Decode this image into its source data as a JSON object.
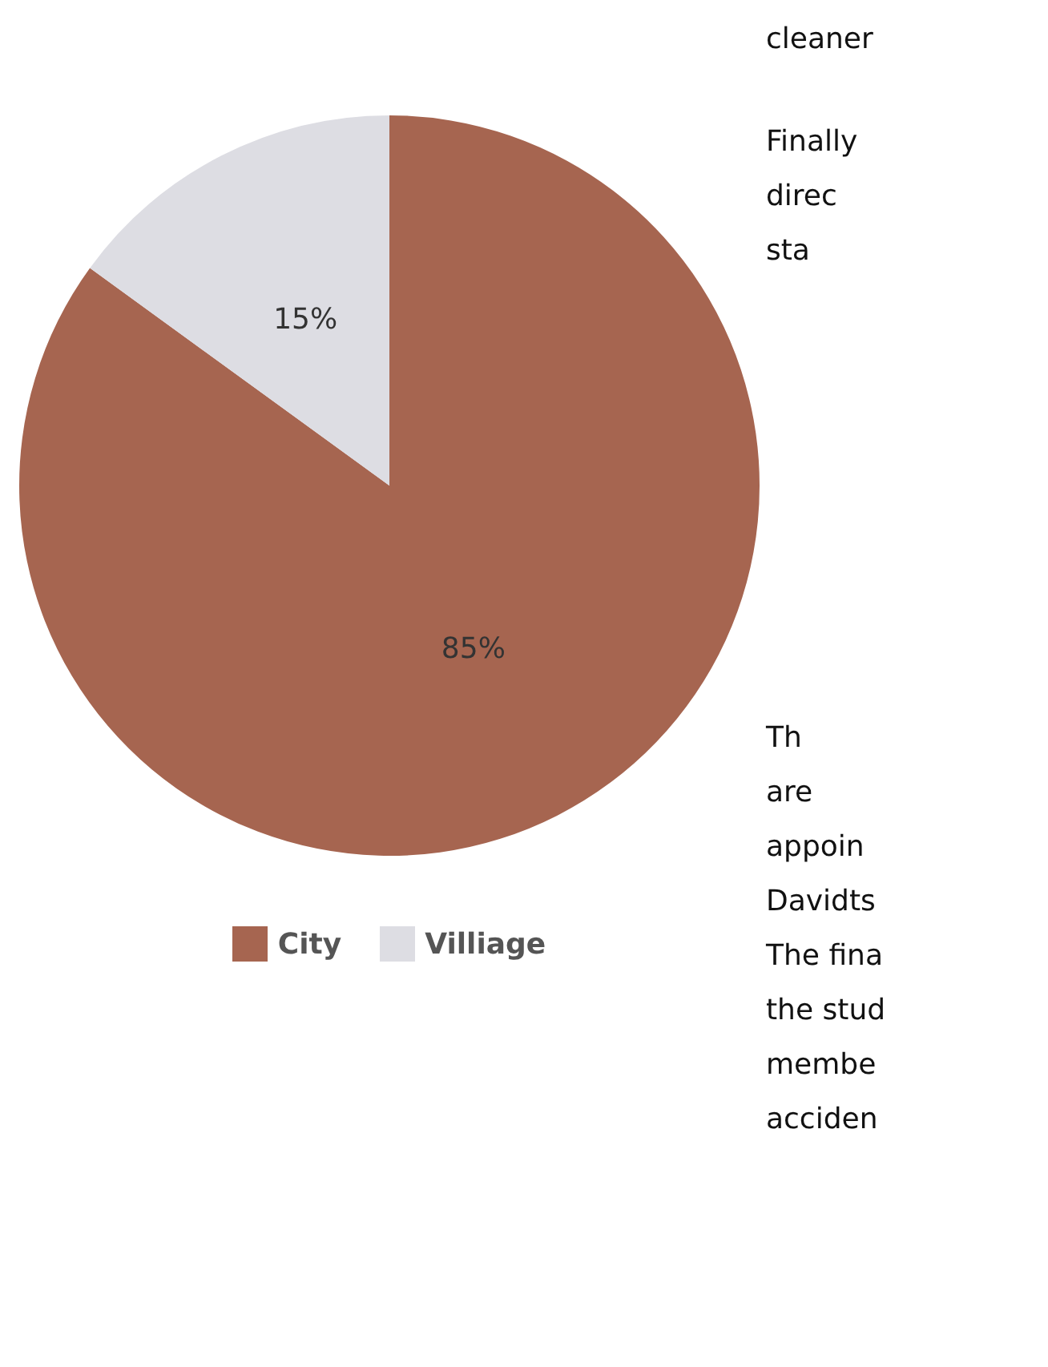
{
  "chart_data": {
    "type": "pie",
    "categories": [
      "City",
      "Villiage"
    ],
    "values": [
      85,
      15
    ],
    "colors": [
      "#a66550",
      "#dddde3"
    ],
    "value_labels": [
      "85%",
      "15%"
    ],
    "legend": "bottom",
    "annotations": [
      "cleaner",
      "Finally",
      "direc",
      "sta",
      "Th",
      "are",
      "appoin",
      "Davidts",
      "The fina",
      "the stud",
      "membe",
      "acciden"
    ]
  }
}
